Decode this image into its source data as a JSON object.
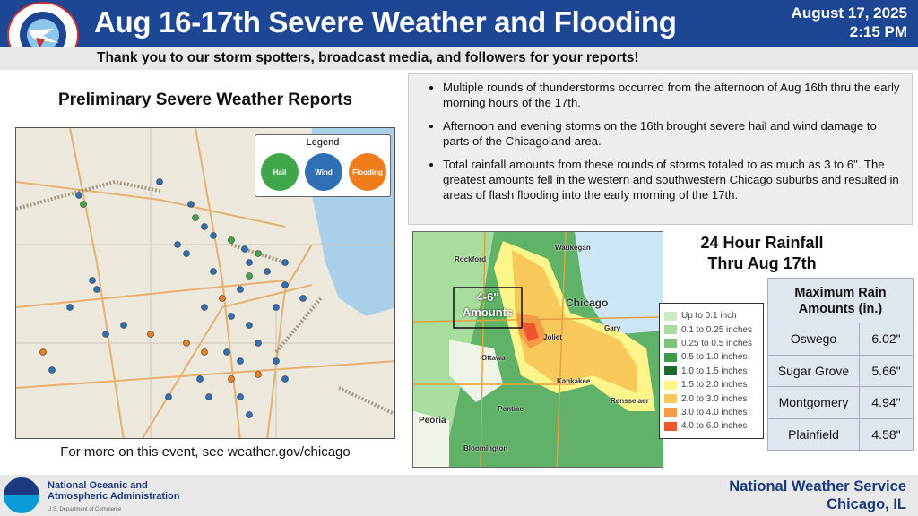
{
  "header": {
    "title": "Aug 16-17th Severe Weather and Flooding",
    "date": "August 17, 2025",
    "time": "2:15 PM",
    "logo_text": "NATIONAL WEATHER SERVICE"
  },
  "subtitle": "Thank you to our storm spotters, broadcast media, and followers for your reports!",
  "left": {
    "title": "Preliminary Severe Weather Reports",
    "caption": "For more on this event, see weather.gov/chicago",
    "legend": {
      "title": "Legend",
      "items": [
        {
          "label": "Hail",
          "color": "#3fa64a"
        },
        {
          "label": "Wind",
          "color": "#2f6fb5"
        },
        {
          "label": "Flooding",
          "color": "#f07c1c"
        }
      ]
    }
  },
  "bullets": [
    "Multiple rounds of thunderstorms occurred from the afternoon of Aug 16th thru the early morning hours of the 17th.",
    "Afternoon and evening storms on the 16th brought severe hail and wind damage to parts of the Chicagoland area.",
    "Total rainfall amounts from these rounds of storms totaled to as much as 3 to 6\". The greatest amounts fell in the western and southwestern Chicago suburbs and resulted in areas of flash flooding into the early morning of the 17th."
  ],
  "rainfall": {
    "title_line1": "24 Hour Rainfall",
    "title_line2": "Thru Aug 17th",
    "annotation_line1": "4-6\"",
    "annotation_line2": "Amounts",
    "cities": [
      "Rockford",
      "Waukegan",
      "Chicago",
      "Joliet",
      "Gary",
      "Ottawa",
      "Kankakee",
      "Rensselaer",
      "Pontiac",
      "Peoria",
      "Bloomington"
    ],
    "legend": [
      {
        "label": "Up to 0.1 inch",
        "color": "#cdeac6"
      },
      {
        "label": "0.1 to 0.25 inches",
        "color": "#a9dc9f"
      },
      {
        "label": "0.25 to 0.5 inches",
        "color": "#7cc679"
      },
      {
        "label": "0.5 to 1.0 inches",
        "color": "#3d9b4c"
      },
      {
        "label": "1.0 to 1.5 inches",
        "color": "#1b6b2f"
      },
      {
        "label": "1.5 to 2.0 inches",
        "color": "#fdf58a"
      },
      {
        "label": "2.0 to 3.0 inches",
        "color": "#f9c85a"
      },
      {
        "label": "3.0 to 4.0 inches",
        "color": "#f59a45"
      },
      {
        "label": "4.0 to 6.0 inches",
        "color": "#ef5530"
      }
    ]
  },
  "max_rain": {
    "header": "Maximum Rain Amounts (in.)",
    "rows": [
      {
        "location": "Oswego",
        "amount": "6.02\""
      },
      {
        "location": "Sugar Grove",
        "amount": "5.66\""
      },
      {
        "location": "Montgomery",
        "amount": "4.94\""
      },
      {
        "location": "Plainfield",
        "amount": "4.58\""
      }
    ]
  },
  "footer": {
    "noaa_line1": "National Oceanic and",
    "noaa_line2": "Atmospheric Administration",
    "noaa_line3": "U.S. Department of Commerce",
    "nws_line1": "National Weather Service",
    "nws_line2": "Chicago, IL"
  }
}
